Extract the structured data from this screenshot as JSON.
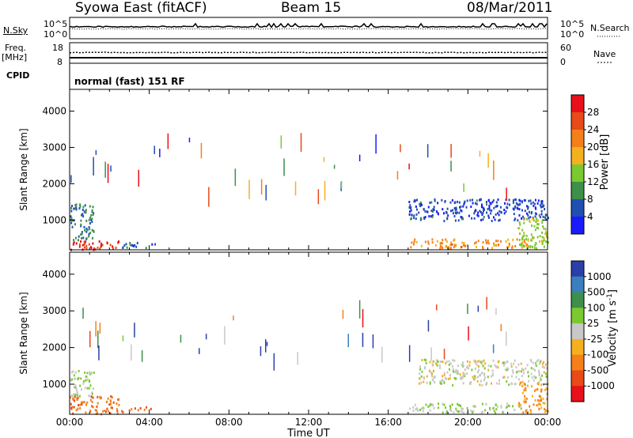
{
  "header": {
    "station": "Syowa East (fitACF)",
    "beam": "Beam 15",
    "date": "08/Mar/2011"
  },
  "strips": {
    "nsky_label": "N.Sky",
    "nsky_ticks": [
      "10^5",
      "10^0"
    ],
    "nsearch_label": "N.Search",
    "nsearch_ticks": [
      "10^5",
      "10^0"
    ],
    "freq_label_line1": "Freq.",
    "freq_label_line2": "[MHz]",
    "freq_ticks": [
      "18",
      "8"
    ],
    "nave_label": "Nave",
    "nave_ticks": [
      "60",
      "0"
    ],
    "cpid_label": "CPID",
    "cpid_text": "normal (fast) 151 RF"
  },
  "axes": {
    "ylabel": "Slant Range [km]",
    "yticks": [
      "4000",
      "3000",
      "2000",
      "1000"
    ],
    "xlabel": "Time UT",
    "xticks": [
      "00:00",
      "04:00",
      "08:00",
      "12:00",
      "16:00",
      "20:00",
      "00:00"
    ]
  },
  "power_scale": {
    "label": "Power [dB]",
    "ticks": [
      "28",
      "24",
      "20",
      "16",
      "12",
      "8",
      "4"
    ],
    "colors": [
      "#e8101a",
      "#e84a18",
      "#f57f18",
      "#f5b020",
      "#7ac930",
      "#3d8f4a",
      "#1f4fb0",
      "#1a1aff"
    ]
  },
  "velocity_scale": {
    "label": "Velocity [m s",
    "label_sup": "-1",
    "label_close": "]",
    "ticks": [
      "1000",
      "500",
      "100",
      "25",
      "-25",
      "-100",
      "-500",
      "-1000"
    ],
    "colors": [
      "#2a3fa8",
      "#3b7fbf",
      "#3d8f4a",
      "#7ac930",
      "#c8c8c8",
      "#f5b020",
      "#f57f18",
      "#e84a18",
      "#e8101a"
    ]
  },
  "chart_data": [
    {
      "type": "heatmap",
      "title": "Beam 15",
      "quantity": "Power [dB]",
      "xlabel": "Time UT",
      "ylabel": "Slant Range [km]",
      "xlim_hours": [
        0,
        24
      ],
      "ylim_km": [
        180,
        4600
      ],
      "color_range": [
        0,
        30
      ],
      "scatter_regions": [
        {
          "t_start": 0.0,
          "t_end": 2.5,
          "range_start": 200,
          "range_end": 450,
          "value": 26
        },
        {
          "t_start": 0.0,
          "t_end": 1.2,
          "range_start": 450,
          "range_end": 1500,
          "value": 8
        },
        {
          "t_start": 2.5,
          "t_end": 4.3,
          "range_start": 250,
          "range_end": 400,
          "value": 6
        },
        {
          "t_start": 17.0,
          "t_end": 23.0,
          "range_start": 250,
          "range_end": 500,
          "value": 20
        },
        {
          "t_start": 17.0,
          "t_end": 24.0,
          "range_start": 1000,
          "range_end": 1600,
          "value": 5
        },
        {
          "t_start": 22.5,
          "t_end": 24.0,
          "range_start": 250,
          "range_end": 1100,
          "value": 14
        }
      ]
    },
    {
      "type": "heatmap",
      "title": "Beam 15",
      "quantity": "Velocity [m s^-1]",
      "xlabel": "Time UT",
      "ylabel": "Slant Range [km]",
      "xlim_hours": [
        0,
        24
      ],
      "ylim_km": [
        180,
        4600
      ],
      "color_range": [
        -1000,
        1000
      ],
      "scatter_regions": [
        {
          "t_start": 0.0,
          "t_end": 2.5,
          "range_start": 200,
          "range_end": 700,
          "value": -500
        },
        {
          "t_start": 0.0,
          "t_end": 1.2,
          "range_start": 700,
          "range_end": 1400,
          "value": 100
        },
        {
          "t_start": 2.5,
          "t_end": 4.3,
          "range_start": 250,
          "range_end": 400,
          "value": -500
        },
        {
          "t_start": 17.0,
          "t_end": 23.0,
          "range_start": 250,
          "range_end": 500,
          "value": 100
        },
        {
          "t_start": 17.5,
          "t_end": 24.0,
          "range_start": 1000,
          "range_end": 1700,
          "value": 0
        },
        {
          "t_start": 22.5,
          "t_end": 24.0,
          "range_start": 250,
          "range_end": 1100,
          "value": -300
        }
      ]
    }
  ]
}
